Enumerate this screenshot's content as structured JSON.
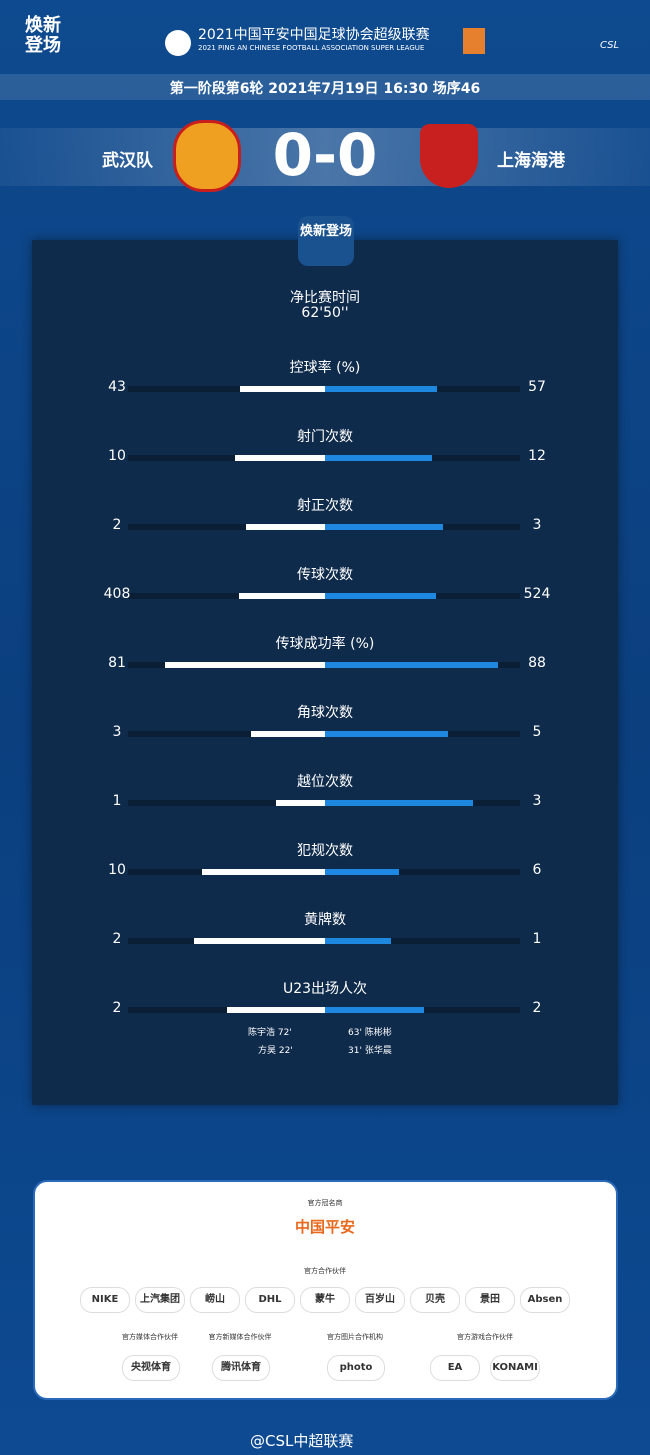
{
  "header": {
    "brand": "焕新登场",
    "league_cn": "2021中国平安中国足球协会超级联赛",
    "league_en": "2021 PING AN CHINESE FOOTBALL ASSOCIATION SUPER LEAGUE",
    "csl": "CSL"
  },
  "match": {
    "info": "第一阶段第6轮  2021年7月19日 16:30 场序46",
    "home": "武汉队",
    "away": "上海海港",
    "score": "0-0"
  },
  "panel": {
    "badge": "焕新登场",
    "time_label": "净比赛时间",
    "time_value": "62'50''"
  },
  "stats": [
    {
      "name": "控球率 (%)",
      "home": 43,
      "away": 57
    },
    {
      "name": "射门次数",
      "home": 10,
      "away": 12
    },
    {
      "name": "射正次数",
      "home": 2,
      "away": 3
    },
    {
      "name": "传球次数",
      "home": 408,
      "away": 524
    },
    {
      "name": "传球成功率 (%)",
      "home": 81,
      "away": 88
    },
    {
      "name": "角球次数",
      "home": 3,
      "away": 5
    },
    {
      "name": "越位次数",
      "home": 1,
      "away": 3
    },
    {
      "name": "犯规次数",
      "home": 10,
      "away": 6
    },
    {
      "name": "黄牌数",
      "home": 2,
      "away": 1
    },
    {
      "name": "U23出场人次",
      "home": 2,
      "away": 2
    }
  ],
  "u23": {
    "home": [
      {
        "player": "陈宇浩",
        "minute": "72'"
      },
      {
        "player": "方昊",
        "minute": "22'"
      }
    ],
    "away": [
      {
        "player": "陈彬彬",
        "minute": "63'"
      },
      {
        "player": "张华晨",
        "minute": "31'"
      }
    ]
  },
  "sponsors": {
    "title_sponsor_label": "官方冠名商",
    "title_sponsor": "中国平安",
    "partners_label": "官方合作伙伴",
    "partners": [
      "NIKE",
      "上汽集团",
      "崂山",
      "DHL",
      "蒙牛",
      "百岁山",
      "贝壳",
      "景田",
      "Absen"
    ],
    "media": [
      {
        "label": "官方媒体合作伙伴",
        "name": "央视体育"
      },
      {
        "label": "官方新媒体合作伙伴",
        "name": "腾讯体育"
      },
      {
        "label": "官方图片合作机构",
        "name": "photo"
      },
      {
        "label": "官方游戏合作伙伴",
        "names": [
          "EA",
          "KONAMI"
        ]
      }
    ]
  },
  "footer": "@CSL中超联赛"
}
